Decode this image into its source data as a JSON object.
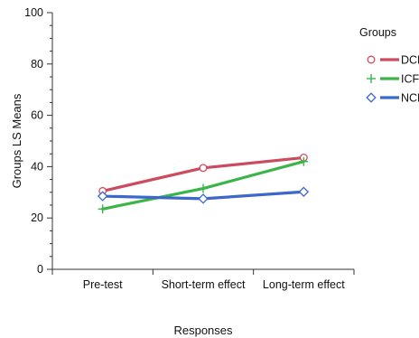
{
  "chart_data": {
    "type": "line",
    "title": "",
    "xlabel": "Responses",
    "ylabel": "Groups  LS Means",
    "categories": [
      "Pre-test",
      "Short-term effect",
      "Long-term effect"
    ],
    "ylim": [
      0,
      100
    ],
    "yticks": [
      0,
      20,
      40,
      60,
      80,
      100
    ],
    "grid": false,
    "legend_title": "Groups",
    "legend_placement": "right",
    "series": [
      {
        "name": "DCF",
        "values": [
          30.5,
          39.5,
          43.5
        ],
        "color": "#cc4b5f",
        "marker": "circle"
      },
      {
        "name": "ICF",
        "values": [
          23.5,
          31.5,
          42.0
        ],
        "color": "#3bb54a",
        "marker": "plus"
      },
      {
        "name": "NCF",
        "values": [
          28.5,
          27.5,
          30.2
        ],
        "color": "#3d67c9",
        "marker": "diamond"
      }
    ]
  }
}
